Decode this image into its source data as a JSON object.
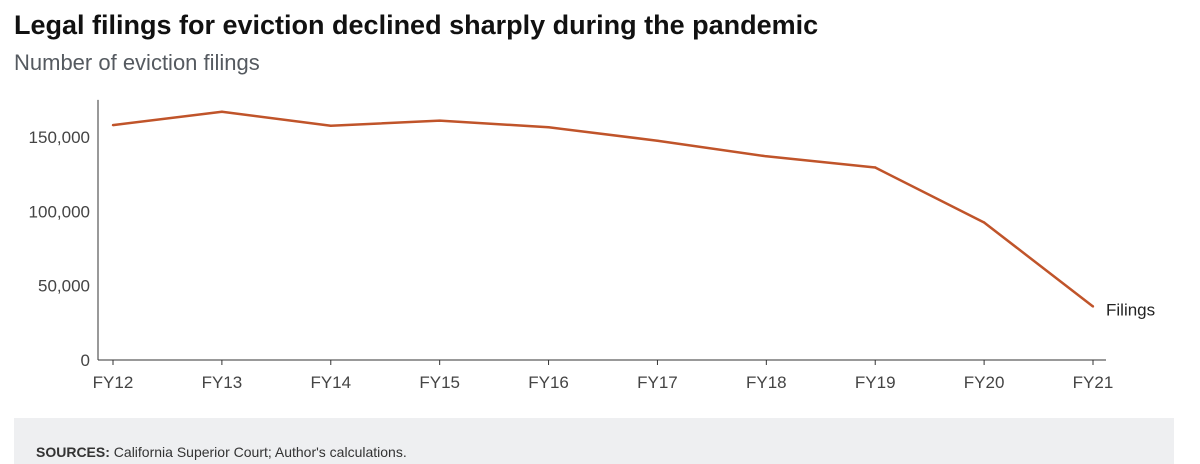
{
  "header": {
    "title": "Legal filings for eviction declined sharply during the pandemic",
    "subtitle": "Number of eviction filings"
  },
  "footer": {
    "sources_label": "SOURCES:",
    "sources_text": " California Superior Court; Author's calculations."
  },
  "colors": {
    "line": "#c0542a",
    "axis": "#333333"
  },
  "chart_data": {
    "type": "line",
    "title": "Legal filings for eviction declined sharply during the pandemic",
    "subtitle": "Number of eviction filings",
    "xlabel": "",
    "ylabel": "",
    "categories": [
      "FY12",
      "FY13",
      "FY14",
      "FY15",
      "FY16",
      "FY17",
      "FY18",
      "FY19",
      "FY20",
      "FY21"
    ],
    "series": [
      {
        "name": "Filings",
        "values": [
          158000,
          167000,
          157500,
          161000,
          156500,
          147500,
          137000,
          129500,
          92500,
          36000
        ]
      }
    ],
    "ylim": [
      0,
      175000
    ],
    "yticks": [
      0,
      50000,
      100000,
      150000
    ],
    "ytick_labels": [
      "0",
      "50,000",
      "100,000",
      "150,000"
    ],
    "grid": false,
    "legend": "end-of-line label"
  }
}
